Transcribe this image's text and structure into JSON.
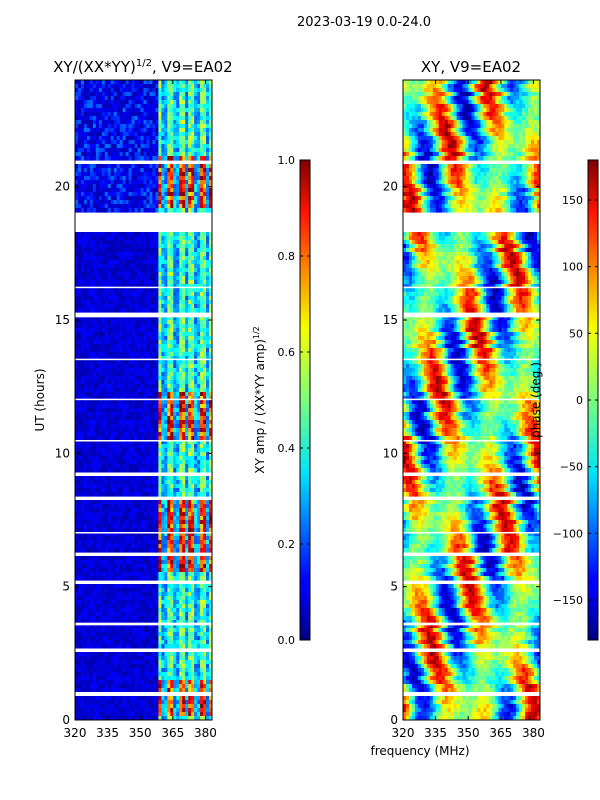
{
  "chart_data": {
    "type": "heatmap",
    "suptitle": "2023-03-19 0.0-24.0",
    "xlabel": "frequency (MHz)",
    "panels": [
      {
        "id": "amp",
        "title": "XY/(XX*YY)",
        "title_exp": "1/2",
        "title_tail": ", V9=EA02",
        "ylabel": "UT (hours)",
        "xlim": [
          320,
          383
        ],
        "ylim": [
          0,
          24
        ],
        "xticks": [
          320,
          335,
          350,
          365,
          380
        ],
        "yticks": [
          0,
          5,
          10,
          15,
          20
        ],
        "colorbar": {
          "label": "XY amp / (XX*YY amp)",
          "label_exp": "1/2",
          "range": [
            0.0,
            1.0
          ],
          "ticks": [
            "0.0",
            "0.2",
            "0.4",
            "0.6",
            "0.8",
            "1.0"
          ],
          "tick_values": [
            0.0,
            0.2,
            0.4,
            0.6,
            0.8,
            1.0
          ]
        }
      },
      {
        "id": "phase",
        "title": "XY, V9=EA02",
        "ylabel": "",
        "xlim": [
          320,
          383
        ],
        "ylim": [
          0,
          24
        ],
        "xticks": [
          320,
          335,
          350,
          365,
          380
        ],
        "yticks": [
          0,
          5,
          10,
          15,
          20
        ],
        "colorbar": {
          "label": "phase (deg.)",
          "range": [
            -180,
            180
          ],
          "ticks": [
            "−150",
            "−100",
            "−50",
            "0",
            "50",
            "100",
            "150"
          ],
          "tick_values": [
            -150,
            -100,
            -50,
            0,
            50,
            100,
            150
          ]
        }
      }
    ],
    "gaps_hours": [
      [
        18.3,
        19.0
      ],
      [
        15.1,
        15.25
      ],
      [
        3.55,
        3.65
      ],
      [
        5.1,
        5.2
      ],
      [
        0.95,
        1.05
      ],
      [
        7.0,
        7.05
      ],
      [
        9.2,
        9.28
      ],
      [
        10.45,
        10.5
      ],
      [
        12.0,
        12.05
      ],
      [
        13.5,
        13.55
      ],
      [
        16.2,
        16.25
      ],
      [
        20.9,
        20.95
      ],
      [
        2.6,
        2.68
      ],
      [
        6.2,
        6.25
      ],
      [
        8.3,
        8.35
      ]
    ],
    "amp_bright_band_mhz": [
      358,
      383
    ],
    "amp_high_hours": [
      [
        0.2,
        1.5
      ],
      [
        5.6,
        8.3
      ],
      [
        10.5,
        12.3
      ],
      [
        19.2,
        21.2
      ]
    ]
  }
}
